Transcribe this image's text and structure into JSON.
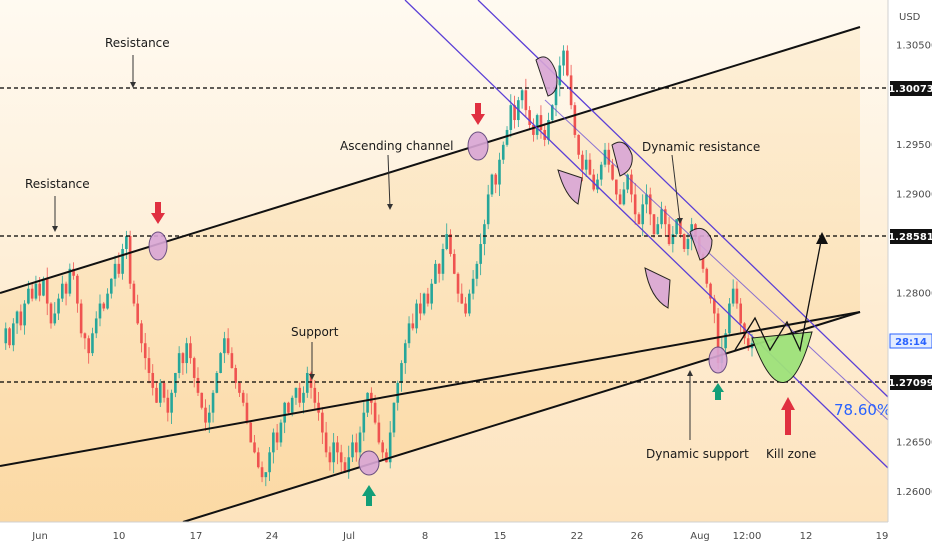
{
  "chart_data": {
    "type": "candlestick",
    "currency": "USD",
    "y_ticks": [
      "1.30500",
      "1.29500",
      "1.29000",
      "1.28000",
      "1.26500",
      "1.26000"
    ],
    "x_ticks": [
      "Jun",
      "10",
      "17",
      "24",
      "Jul",
      "8",
      "15",
      "22",
      "26",
      "Aug",
      "12:00",
      "12",
      "19"
    ],
    "price_levels": [
      {
        "name": "resistance-upper",
        "value": "1.30073",
        "color": "#000000"
      },
      {
        "name": "resistance-mid",
        "value": "1.28581",
        "color": "#000000"
      },
      {
        "name": "support",
        "value": "1.27099",
        "color": "#000000"
      }
    ],
    "current_price_tag": {
      "value": "28:14",
      "color": "#2962ff"
    },
    "annotations": {
      "resistance_top": "Resistance",
      "resistance_left": "Resistance",
      "ascending_channel": "Ascending channel",
      "support": "Support",
      "dynamic_resistance": "Dynamic resistance",
      "dynamic_support": "Dynamic support",
      "kill_zone": "Kill zone",
      "fib": "78.60%"
    },
    "colors": {
      "up": "#26a69a",
      "down": "#ef5350",
      "channel": "#000000",
      "desc_channel": "#5b3fd6",
      "circle_fill": "#d9a6d6",
      "kill_zone": "#9ee27a",
      "fib": "#2962ff",
      "arrow_red": "#e03040",
      "arrow_green": "#129e78"
    },
    "series": [
      1.275,
      1.2765,
      1.2748,
      1.277,
      1.2782,
      1.2768,
      1.279,
      1.2805,
      1.2795,
      1.281,
      1.2798,
      1.2815,
      1.279,
      1.277,
      1.278,
      1.2795,
      1.281,
      1.28,
      1.2825,
      1.2818,
      1.279,
      1.276,
      1.2755,
      1.274,
      1.276,
      1.2775,
      1.279,
      1.2785,
      1.28,
      1.2815,
      1.283,
      1.282,
      1.2845,
      1.2858,
      1.281,
      1.279,
      1.277,
      1.275,
      1.2735,
      1.272,
      1.2705,
      1.269,
      1.271,
      1.2695,
      1.268,
      1.27,
      1.272,
      1.274,
      1.273,
      1.275,
      1.2735,
      1.2715,
      1.27,
      1.2685,
      1.267,
      1.268,
      1.27,
      1.272,
      1.274,
      1.2755,
      1.274,
      1.2725,
      1.271,
      1.27,
      1.269,
      1.267,
      1.265,
      1.264,
      1.2625,
      1.2615,
      1.262,
      1.264,
      1.266,
      1.265,
      1.267,
      1.269,
      1.268,
      1.2695,
      1.2705,
      1.269,
      1.27,
      1.272,
      1.2705,
      1.269,
      1.268,
      1.266,
      1.264,
      1.263,
      1.265,
      1.264,
      1.263,
      1.262,
      1.2635,
      1.265,
      1.264,
      1.266,
      1.268,
      1.27,
      1.269,
      1.267,
      1.265,
      1.264,
      1.263,
      1.266,
      1.269,
      1.271,
      1.273,
      1.275,
      1.277,
      1.2765,
      1.279,
      1.278,
      1.28,
      1.279,
      1.281,
      1.283,
      1.282,
      1.2845,
      1.286,
      1.284,
      1.282,
      1.28,
      1.279,
      1.278,
      1.28,
      1.2815,
      1.283,
      1.285,
      1.287,
      1.29,
      1.292,
      1.291,
      1.2935,
      1.295,
      1.2965,
      1.299,
      1.2975,
      1.2995,
      1.3005,
      1.2985,
      1.297,
      1.296,
      1.298,
      1.2965,
      1.2955,
      1.2975,
      1.299,
      1.301,
      1.303,
      1.3045,
      1.302,
      1.299,
      1.296,
      1.294,
      1.2925,
      1.2935,
      1.292,
      1.2905,
      1.2915,
      1.293,
      1.2945,
      1.293,
      1.2915,
      1.29,
      1.289,
      1.2905,
      1.292,
      1.29,
      1.288,
      1.287,
      1.289,
      1.29,
      1.288,
      1.286,
      1.287,
      1.2885,
      1.287,
      1.285,
      1.286,
      1.2875,
      1.286,
      1.2845,
      1.2855,
      1.287,
      1.2858,
      1.284,
      1.2825,
      1.281,
      1.2795,
      1.278,
      1.273,
      1.2745,
      1.276,
      1.279,
      1.2805,
      1.279,
      1.277,
      1.2755,
      1.2745,
      1.275
    ]
  }
}
